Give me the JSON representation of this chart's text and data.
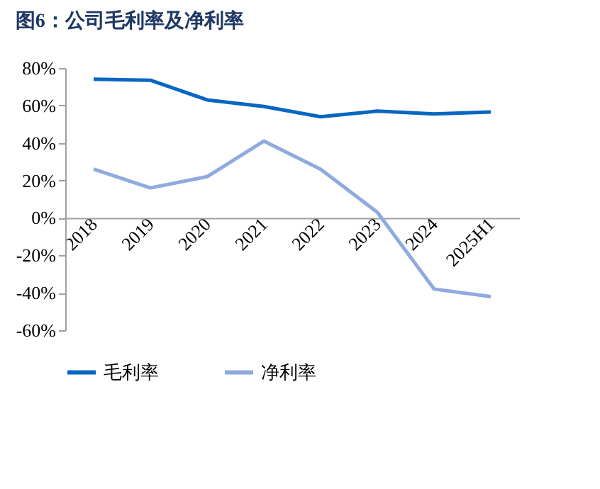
{
  "chart_data": {
    "type": "line",
    "title": "图6：公司毛利率及净利率",
    "categories": [
      "2018",
      "2019",
      "2020",
      "2021",
      "2022",
      "2023",
      "2024",
      "2025H1"
    ],
    "series": [
      {
        "name": "毛利率",
        "color": "#0866c2",
        "values": [
          74,
          73.5,
          63,
          59.5,
          54,
          57,
          55.5,
          56.5
        ]
      },
      {
        "name": "净利率",
        "color": "#8eaadf",
        "values": [
          26,
          16,
          22,
          41,
          26,
          3,
          -38,
          -42
        ]
      }
    ],
    "ylim": [
      -60,
      80
    ],
    "yticks": [
      {
        "value": -60,
        "label": "-60%"
      },
      {
        "value": -40,
        "label": "-40%"
      },
      {
        "value": -20,
        "label": "-20%"
      },
      {
        "value": 0,
        "label": "0%"
      },
      {
        "value": 20,
        "label": "20%"
      },
      {
        "value": 40,
        "label": "40%"
      },
      {
        "value": 60,
        "label": "60%"
      },
      {
        "value": 80,
        "label": "80%"
      }
    ],
    "grid": false,
    "legend": "bottom",
    "marker": "none",
    "line_style": "solid"
  }
}
